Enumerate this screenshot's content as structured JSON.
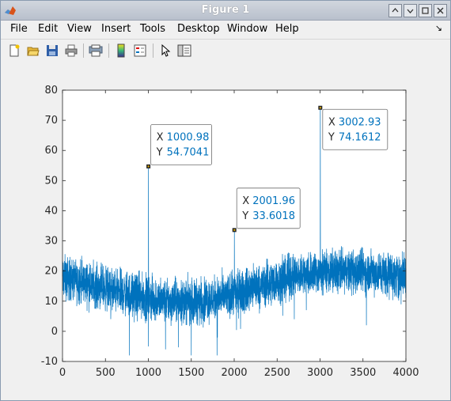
{
  "window": {
    "title": "Figure 1"
  },
  "menu": {
    "items": [
      {
        "label": "File"
      },
      {
        "label": "Edit"
      },
      {
        "label": "View"
      },
      {
        "label": "Insert"
      },
      {
        "label": "Tools"
      },
      {
        "label": "Desktop"
      },
      {
        "label": "Window"
      },
      {
        "label": "Help"
      }
    ]
  },
  "toolbar": {
    "buttons": [
      "new-figure-icon",
      "open-file-icon",
      "save-icon",
      "print-icon",
      "print-preview-icon",
      "colorbar-icon",
      "legend-icon",
      "edit-plot-arrow-icon",
      "property-inspector-icon"
    ]
  },
  "colors": {
    "line": "#0072bd",
    "datatip_value": "#0072bd"
  },
  "chart_data": {
    "type": "line",
    "xlim": [
      0,
      4000
    ],
    "ylim": [
      -10,
      80
    ],
    "xticks": [
      0,
      500,
      1000,
      1500,
      2000,
      2500,
      3000,
      3500,
      4000
    ],
    "yticks": [
      -10,
      0,
      10,
      20,
      30,
      40,
      50,
      60,
      70,
      80
    ],
    "grid": false,
    "baseline": [
      {
        "x": 0,
        "y": 18
      },
      {
        "x": 400,
        "y": 15
      },
      {
        "x": 800,
        "y": 12
      },
      {
        "x": 1200,
        "y": 10
      },
      {
        "x": 1600,
        "y": 10
      },
      {
        "x": 2000,
        "y": 12
      },
      {
        "x": 2400,
        "y": 16
      },
      {
        "x": 2800,
        "y": 19
      },
      {
        "x": 3200,
        "y": 20
      },
      {
        "x": 3600,
        "y": 20
      },
      {
        "x": 4000,
        "y": 18
      }
    ],
    "noise_amplitude": 5,
    "dips": [
      {
        "x": 780,
        "y": -8
      },
      {
        "x": 1000,
        "y": -5
      },
      {
        "x": 1200,
        "y": -6
      },
      {
        "x": 1500,
        "y": -8
      },
      {
        "x": 1800,
        "y": -8
      },
      {
        "x": 3540,
        "y": 2
      },
      {
        "x": 2700,
        "y": 4
      }
    ],
    "peaks": [
      {
        "x": 1000.98,
        "y": 54.7041
      },
      {
        "x": 2001.96,
        "y": 33.6018
      },
      {
        "x": 3002.93,
        "y": 74.1612
      }
    ],
    "datatips": [
      {
        "x_label": "X",
        "y_label": "Y",
        "x": "1000.98",
        "y": "54.7041"
      },
      {
        "x_label": "X",
        "y_label": "Y",
        "x": "2001.96",
        "y": "33.6018"
      },
      {
        "x_label": "X",
        "y_label": "Y",
        "x": "3002.93",
        "y": "74.1612"
      }
    ]
  }
}
